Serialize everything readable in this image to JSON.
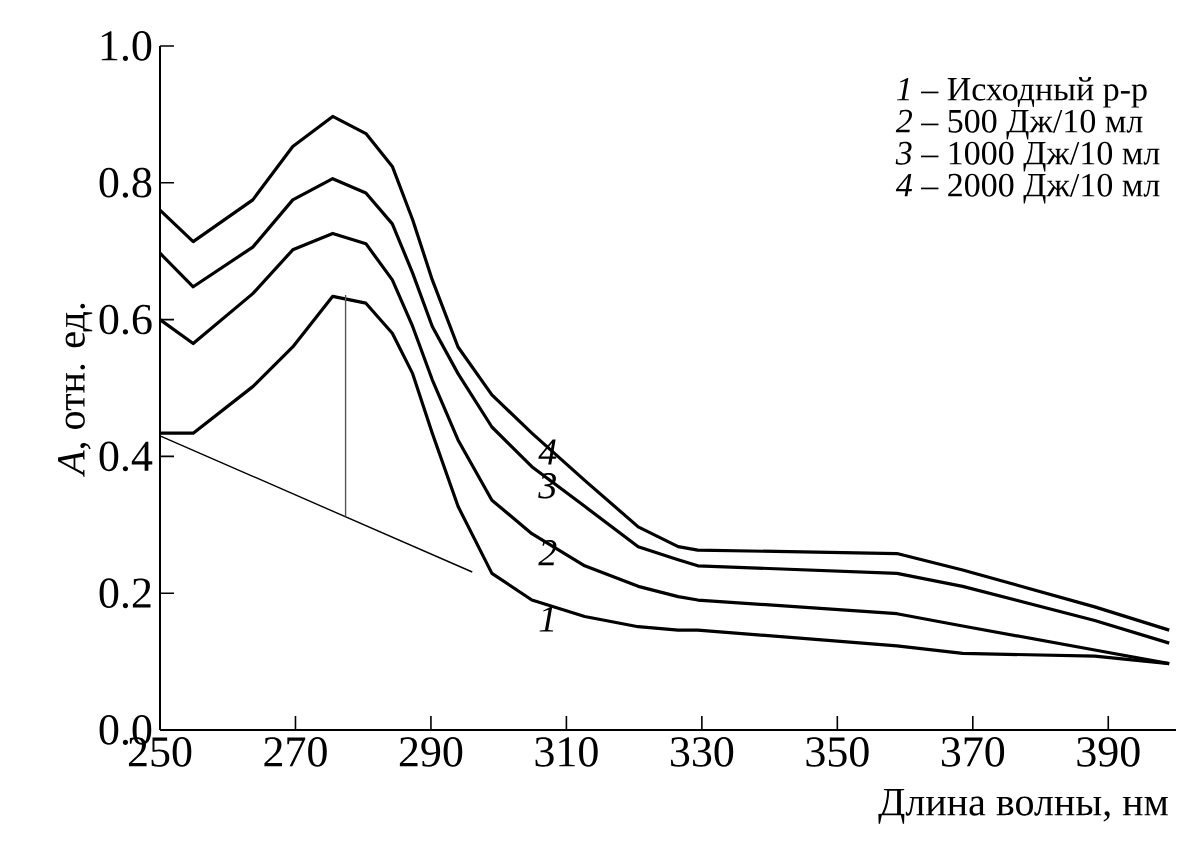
{
  "chart_data": {
    "type": "line",
    "xlabel": "Длина волны, нм",
    "ylabel": "*A*, отн. ед.",
    "xlim": [
      250,
      400
    ],
    "ylim": [
      0,
      1.0
    ],
    "xticks": [
      250,
      270,
      290,
      310,
      330,
      350,
      370,
      390
    ],
    "yticks": [
      {
        "value": 0,
        "label": "0.0"
      },
      {
        "value": 0.2,
        "label": "0.2"
      },
      {
        "value": 0.4,
        "label": "0.4"
      },
      {
        "value": 0.6,
        "label": "0.6"
      },
      {
        "value": 0.8,
        "label": "0.8"
      },
      {
        "value": 1.0,
        "label": "1.0"
      }
    ],
    "grid": false,
    "marker": "none",
    "line_style": "solid",
    "x": [
      250,
      254.9,
      263.7,
      269.6,
      275.5,
      280.4,
      284.3,
      287.3,
      290.2,
      294,
      299,
      304.9,
      312.7,
      320.6,
      326.5,
      329.4,
      358.8,
      368.5,
      388,
      399
    ],
    "series": [
      {
        "name": "1",
        "color": "#000000",
        "values": [
          0.434,
          0.434,
          0.502,
          0.56,
          0.634,
          0.624,
          0.58,
          0.521,
          0.434,
          0.327,
          0.229,
          0.19,
          0.166,
          0.151,
          0.146,
          0.146,
          0.123,
          0.112,
          0.108,
          0.097
        ]
      },
      {
        "name": "2",
        "color": "#000000",
        "values": [
          0.6,
          0.565,
          0.638,
          0.702,
          0.726,
          0.711,
          0.658,
          0.59,
          0.512,
          0.424,
          0.336,
          0.287,
          0.24,
          0.21,
          0.195,
          0.19,
          0.17,
          0.152,
          0.117,
          0.097
        ]
      },
      {
        "name": "3",
        "color": "#000000",
        "values": [
          0.697,
          0.648,
          0.706,
          0.775,
          0.806,
          0.785,
          0.74,
          0.668,
          0.59,
          0.521,
          0.443,
          0.385,
          0.327,
          0.268,
          0.249,
          0.24,
          0.229,
          0.21,
          0.16,
          0.127
        ]
      },
      {
        "name": "4",
        "color": "#000000",
        "values": [
          0.76,
          0.714,
          0.775,
          0.853,
          0.897,
          0.872,
          0.824,
          0.746,
          0.658,
          0.56,
          0.49,
          0.434,
          0.365,
          0.297,
          0.268,
          0.263,
          0.258,
          0.234,
          0.18,
          0.146
        ]
      },
      {
        "color": "#000000",
        "x": [
          250,
          296.1
        ],
        "values": [
          0.43,
          0.231
        ]
      },
      {
        "color": "#555555",
        "x": [
          277.4,
          277.4
        ],
        "values": [
          0.312,
          0.636
        ]
      }
    ],
    "annotations": [
      "*1* – Исходный р-р",
      "*2* – 500 Дж/10 мл",
      "*3* – 1000 Дж/10 мл",
      "*4* – 2000 Дж/10 мл"
    ]
  }
}
